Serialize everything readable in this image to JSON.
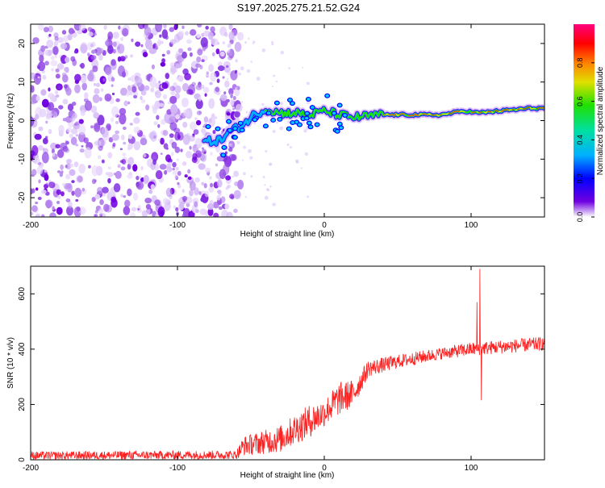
{
  "title": "S197.2025.275.21.52.G24",
  "colors": {
    "snr_line": "#ff2020",
    "frame": "#000000"
  },
  "chart_data": [
    {
      "type": "heatmap",
      "xlabel": "Height of straight line (km)",
      "ylabel": "Frequency (Hz)",
      "xlim": [
        -200,
        150
      ],
      "ylim": [
        -25,
        25
      ],
      "xticks": [
        -200,
        -100,
        0,
        100
      ],
      "yticks": [
        -20,
        -10,
        0,
        10,
        20
      ],
      "colorbar": {
        "label": "Normalized spectral amplitude",
        "range": [
          0,
          1
        ],
        "ticks": [
          "0.0",
          "0.2",
          "0.4",
          "0.6",
          "0.8"
        ],
        "colormap": [
          "#ffffff",
          "#7000e0",
          "#0000ff",
          "#00b0ff",
          "#00e0a0",
          "#20e000",
          "#e0e000",
          "#ff8000",
          "#ff0000",
          "#ff0080"
        ]
      },
      "ridge": [
        {
          "x": -80,
          "f": -5.5
        },
        {
          "x": -70,
          "f": -5
        },
        {
          "x": -65,
          "f": -3
        },
        {
          "x": -55,
          "f": -1
        },
        {
          "x": -48,
          "f": 1.5
        },
        {
          "x": -40,
          "f": 3
        },
        {
          "x": -30,
          "f": 2
        },
        {
          "x": -20,
          "f": 2
        },
        {
          "x": -10,
          "f": 1.5
        },
        {
          "x": 0,
          "f": 2.5
        },
        {
          "x": 10,
          "f": 1.5
        },
        {
          "x": 20,
          "f": 0.8
        },
        {
          "x": 40,
          "f": 1.5
        },
        {
          "x": 60,
          "f": 1.5
        },
        {
          "x": 80,
          "f": 1.5
        },
        {
          "x": 95,
          "f": 2.5
        },
        {
          "x": 105,
          "f": 2
        },
        {
          "x": 120,
          "f": 2.5
        },
        {
          "x": 140,
          "f": 3.2
        },
        {
          "x": 150,
          "f": 3.2
        }
      ],
      "noise_region": {
        "x": [
          -200,
          -65
        ],
        "f": [
          -25,
          25
        ]
      }
    },
    {
      "type": "line",
      "xlabel": "Height of straight line (km)",
      "ylabel": "SNR (10 * v/v)",
      "xlim": [
        -200,
        150
      ],
      "ylim": [
        0,
        700
      ],
      "xticks": [
        -200,
        -100,
        0,
        100
      ],
      "yticks": [
        0,
        200,
        400,
        600
      ],
      "envelope": [
        {
          "x": -200,
          "mean": 15,
          "spread": 15
        },
        {
          "x": -60,
          "mean": 18,
          "spread": 16
        },
        {
          "x": -55,
          "mean": 50,
          "spread": 35
        },
        {
          "x": -30,
          "mean": 75,
          "spread": 50
        },
        {
          "x": -20,
          "mean": 110,
          "spread": 55
        },
        {
          "x": -10,
          "mean": 140,
          "spread": 60
        },
        {
          "x": 0,
          "mean": 170,
          "spread": 50
        },
        {
          "x": 10,
          "mean": 220,
          "spread": 60
        },
        {
          "x": 20,
          "mean": 240,
          "spread": 50
        },
        {
          "x": 30,
          "mean": 330,
          "spread": 30
        },
        {
          "x": 50,
          "mean": 355,
          "spread": 25
        },
        {
          "x": 80,
          "mean": 385,
          "spread": 22
        },
        {
          "x": 100,
          "mean": 400,
          "spread": 25
        },
        {
          "x": 150,
          "mean": 420,
          "spread": 25
        }
      ],
      "spikes": [
        {
          "x": 106,
          "value": 690
        },
        {
          "x": 107,
          "value": 215
        },
        {
          "x": 104,
          "value": 570
        }
      ]
    }
  ]
}
